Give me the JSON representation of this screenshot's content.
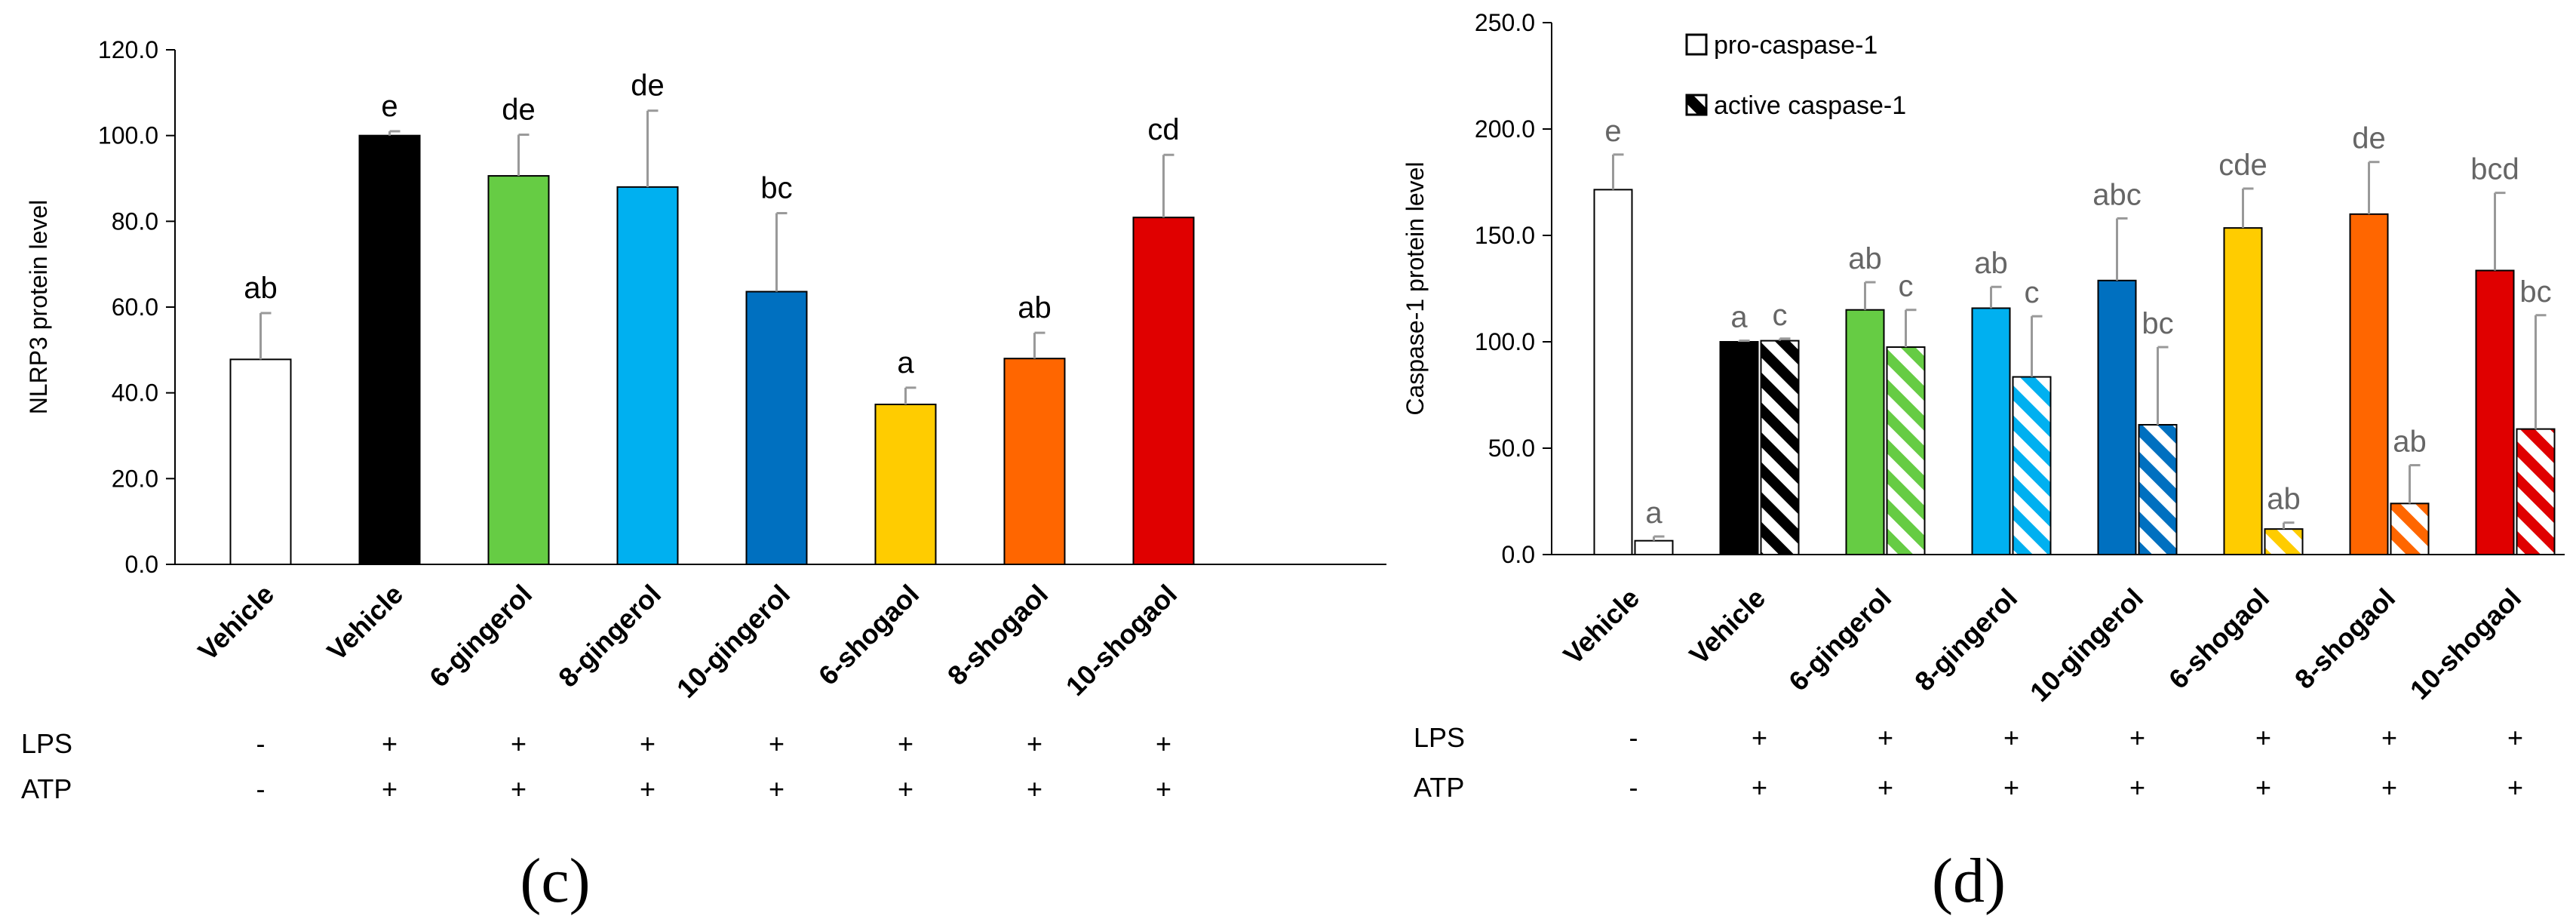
{
  "chart_data": [
    {
      "type": "bar",
      "panel_label": "(c)",
      "ylabel": "NLRP3 protein level",
      "ylim": [
        0,
        120
      ],
      "yticks": [
        "0.0",
        "20.0",
        "40.0",
        "60.0",
        "80.0",
        "100.0",
        "120.0"
      ],
      "categories": [
        "Vehicle",
        "Vehicle",
        "6-gingerol",
        "8-gingerol",
        "10-gingerol",
        "6-shogaol",
        "8-shogaol",
        "10-shogaol"
      ],
      "colors": [
        "#ffffff",
        "#000000",
        "#66cc44",
        "#00b0f0",
        "#0070c0",
        "#ffcc00",
        "#ff6600",
        "#e00000"
      ],
      "series": [
        {
          "name": "NLRP3",
          "values": [
            47.8,
            100.0,
            90.6,
            88.0,
            63.6,
            37.3,
            48.0,
            80.9
          ],
          "errors": [
            10.8,
            1.0,
            9.6,
            17.8,
            18.3,
            3.9,
            6.0,
            14.6
          ],
          "labels": [
            "ab",
            "e",
            "de",
            "de",
            "bc",
            "a",
            "ab",
            "cd"
          ]
        }
      ],
      "conditions": [
        {
          "name": "LPS",
          "values": [
            "-",
            "+",
            "+",
            "+",
            "+",
            "+",
            "+",
            "+"
          ]
        },
        {
          "name": "ATP",
          "values": [
            "-",
            "+",
            "+",
            "+",
            "+",
            "+",
            "+",
            "+"
          ]
        }
      ]
    },
    {
      "type": "bar",
      "panel_label": "(d)",
      "ylabel": "Caspase-1 protein level",
      "ylim": [
        0,
        250
      ],
      "yticks": [
        "0.0",
        "50.0",
        "100.0",
        "150.0",
        "200.0",
        "250.0"
      ],
      "categories": [
        "Vehicle",
        "Vehicle",
        "6-gingerol",
        "8-gingerol",
        "10-gingerol",
        "6-shogaol",
        "8-shogaol",
        "10-shogaol"
      ],
      "colors": [
        "#ffffff",
        "#000000",
        "#66cc44",
        "#00b0f0",
        "#0070c0",
        "#ffcc00",
        "#ff6600",
        "#e00000"
      ],
      "legend": [
        "pro-caspase-1",
        "active caspase-1"
      ],
      "series": [
        {
          "name": "pro-caspase-1",
          "values": [
            171.5,
            100.0,
            115.0,
            115.8,
            128.8,
            153.5,
            160.0,
            133.5
          ],
          "errors": [
            16.5,
            0.5,
            13.0,
            10.0,
            29.2,
            18.5,
            24.5,
            36.5
          ],
          "labels": [
            "e",
            "a",
            "ab",
            "ab",
            "abc",
            "cde",
            "de",
            "bcd"
          ]
        },
        {
          "name": "active caspase-1",
          "values": [
            6.5,
            100.5,
            97.5,
            83.5,
            61.0,
            12.0,
            24.0,
            59.0
          ],
          "errors": [
            2.0,
            1.0,
            17.5,
            28.5,
            36.5,
            3.0,
            18.0,
            53.5
          ],
          "labels": [
            "a",
            "c",
            "c",
            "c",
            "bc",
            "ab",
            "ab",
            "bc"
          ]
        }
      ],
      "conditions": [
        {
          "name": "LPS",
          "values": [
            "-",
            "+",
            "+",
            "+",
            "+",
            "+",
            "+",
            "+"
          ]
        },
        {
          "name": "ATP",
          "values": [
            "-",
            "+",
            "+",
            "+",
            "+",
            "+",
            "+",
            "+"
          ]
        }
      ]
    }
  ]
}
